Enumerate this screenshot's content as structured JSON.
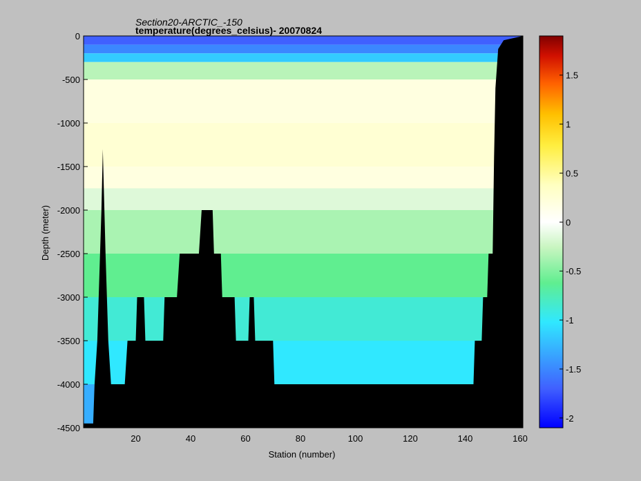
{
  "chart_data": {
    "type": "heatmap",
    "title": "Section20-ARCTIC_-150",
    "subtitle": "temperature(degrees_celsius)- 20070824",
    "xlabel": "Station (number)",
    "ylabel": "Depth (meter)",
    "xlim": [
      1,
      161
    ],
    "ylim": [
      -4500,
      0
    ],
    "xticks": [
      20,
      40,
      60,
      80,
      100,
      120,
      140,
      160
    ],
    "yticks": [
      0,
      -500,
      -1000,
      -1500,
      -2000,
      -2500,
      -3000,
      -3500,
      -4000,
      -4500
    ],
    "colorbar": {
      "clim": [
        -2.1,
        1.9
      ],
      "ticks": [
        1.5,
        1,
        0.5,
        0,
        -0.5,
        -1,
        -1.5,
        -2
      ],
      "colormap": "jet-white"
    },
    "layers": [
      {
        "top": 0,
        "bottom": -100,
        "value": -1.7
      },
      {
        "top": -100,
        "bottom": -200,
        "value": -1.5
      },
      {
        "top": -200,
        "bottom": -300,
        "value": -1.15
      },
      {
        "top": -300,
        "bottom": -500,
        "value": -0.3
      },
      {
        "top": -500,
        "bottom": -1000,
        "value": 0.2
      },
      {
        "top": -1000,
        "bottom": -1500,
        "value": 0.28
      },
      {
        "top": -1500,
        "bottom": -1750,
        "value": 0.2
      },
      {
        "top": -1750,
        "bottom": -2000,
        "value": -0.15
      },
      {
        "top": -2000,
        "bottom": -2500,
        "value": -0.35
      },
      {
        "top": -2500,
        "bottom": -3000,
        "value": -0.6
      },
      {
        "top": -3000,
        "bottom": -3500,
        "value": -0.85
      },
      {
        "top": -3500,
        "bottom": -4000,
        "value": -1.0
      },
      {
        "top": -4000,
        "bottom": -4500,
        "value": -1.3
      }
    ],
    "seafloor": [
      [
        1,
        -4450
      ],
      [
        4.5,
        -4450
      ],
      [
        5,
        -4000
      ],
      [
        6,
        -3500
      ],
      [
        7.5,
        -2000
      ],
      [
        8,
        -1300
      ],
      [
        9,
        -2500
      ],
      [
        10,
        -3500
      ],
      [
        11,
        -4000
      ],
      [
        16,
        -4000
      ],
      [
        17,
        -3500
      ],
      [
        20,
        -3500
      ],
      [
        20.5,
        -3000
      ],
      [
        23,
        -3000
      ],
      [
        23.5,
        -3500
      ],
      [
        30,
        -3500
      ],
      [
        30.5,
        -3000
      ],
      [
        35,
        -3000
      ],
      [
        36,
        -2500
      ],
      [
        43,
        -2500
      ],
      [
        44,
        -2000
      ],
      [
        48,
        -2000
      ],
      [
        48.5,
        -2500
      ],
      [
        51,
        -2500
      ],
      [
        51.5,
        -3000
      ],
      [
        56,
        -3000
      ],
      [
        56.5,
        -3500
      ],
      [
        61,
        -3500
      ],
      [
        61.5,
        -3000
      ],
      [
        63,
        -3000
      ],
      [
        63.5,
        -3500
      ],
      [
        70,
        -3500
      ],
      [
        70.5,
        -4000
      ],
      [
        143,
        -4000
      ],
      [
        143.5,
        -3500
      ],
      [
        146,
        -3500
      ],
      [
        146.5,
        -3000
      ],
      [
        148,
        -3000
      ],
      [
        148.5,
        -2500
      ],
      [
        150,
        -2500
      ],
      [
        150.5,
        -1400
      ],
      [
        151,
        -600
      ],
      [
        152,
        -150
      ],
      [
        154,
        -50
      ],
      [
        161,
        0
      ]
    ]
  }
}
